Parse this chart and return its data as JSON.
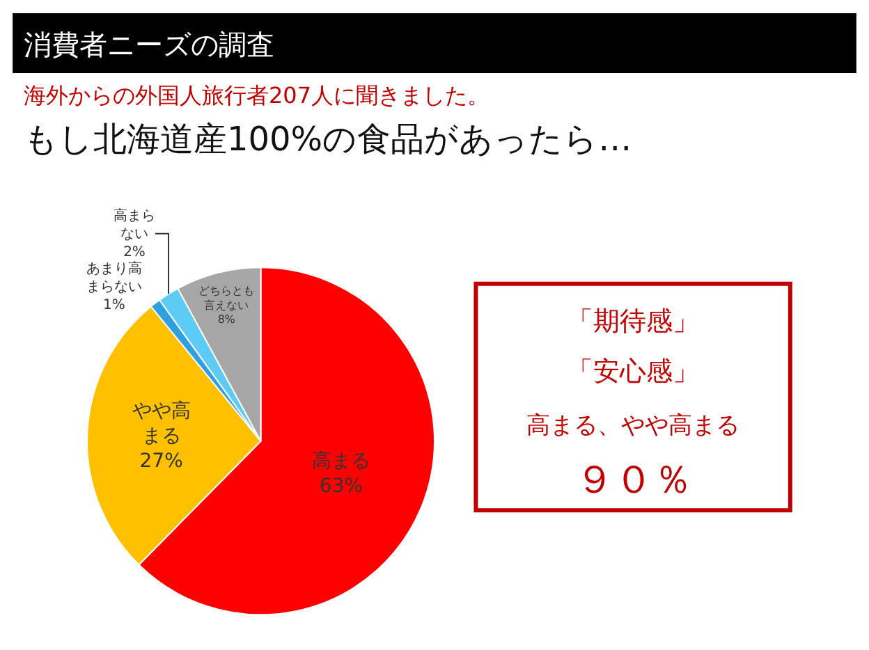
{
  "chart_data": {
    "type": "pie",
    "title": "消費者ニーズの調査",
    "subtitle": "海外からの外国人旅行者207人に聞きました。",
    "categories": [
      "高まる",
      "やや高まる",
      "あまり高まらない",
      "高まらない",
      "どちらとも言えない"
    ],
    "values": [
      63,
      27,
      1,
      2,
      8
    ],
    "colors": [
      "#ff0000",
      "#ffc000",
      "#2e9fe0",
      "#5ccbf5",
      "#a6a6a6"
    ],
    "value_labels": [
      "63%",
      "27%",
      "1%",
      "2%",
      "8%"
    ],
    "annotations": [
      "もし北海道産100%の食品があったら…",
      "「期待感」",
      "「安心感」",
      "高まる、やや高まる",
      "９０％"
    ],
    "legend": false
  }
}
